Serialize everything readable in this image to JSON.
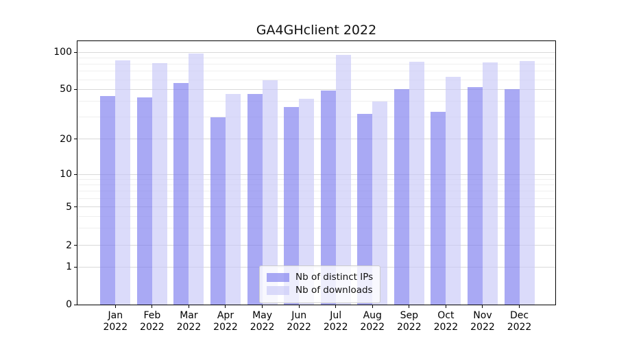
{
  "chart_data": {
    "type": "bar",
    "title": "GA4GHclient 2022",
    "categories": [
      "Jan",
      "Feb",
      "Mar",
      "Apr",
      "May",
      "Jun",
      "Jul",
      "Aug",
      "Sep",
      "Oct",
      "Nov",
      "Dec"
    ],
    "category_year": "2022",
    "series": [
      {
        "name": "Nb of distinct IPs",
        "color": "rgba(123,123,238,0.65)",
        "values": [
          44,
          43,
          56,
          30,
          46,
          36,
          49,
          32,
          50,
          33,
          52,
          50
        ]
      },
      {
        "name": "Nb of downloads",
        "color": "rgba(200,200,248,0.65)",
        "values": [
          86,
          82,
          97,
          46,
          59,
          42,
          95,
          40,
          84,
          63,
          83,
          85
        ]
      }
    ],
    "yscale": "symlog",
    "yticks": [
      100,
      50,
      20,
      10,
      5,
      2,
      1,
      0
    ],
    "minor_yticks": [
      3,
      4,
      6,
      7,
      8,
      9,
      30,
      40,
      60,
      70,
      80,
      90
    ],
    "ylim": [
      0,
      120
    ],
    "grid": true,
    "legend_position": "lower center",
    "colors": {
      "background": "#ffffff",
      "axis": "#000000",
      "major_grid": "#d9d9d9",
      "minor_grid": "#efefef",
      "title_text": "#111111"
    }
  }
}
